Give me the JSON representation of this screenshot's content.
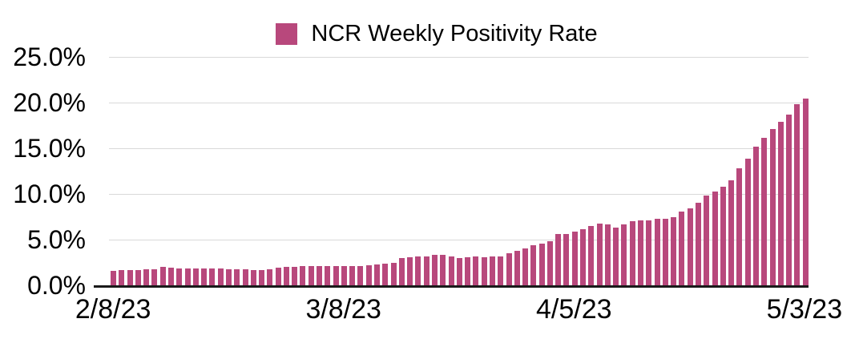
{
  "colors": {
    "bar": "#b8487c",
    "gridline": "#d9d9d9",
    "axis_line": "#1a1a1a",
    "text": "#000000",
    "background": "#ffffff"
  },
  "legend": {
    "label": "NCR Weekly Positivity Rate"
  },
  "chart_data": {
    "type": "bar",
    "title": "NCR Weekly Positivity Rate",
    "xlabel": "",
    "ylabel": "",
    "ylim": [
      0,
      25
    ],
    "grid": true,
    "legend_position": "top-center",
    "ytick_values": [
      25,
      20,
      15,
      10,
      5,
      0
    ],
    "ytick_labels": [
      "25.0%",
      "20.0%",
      "15.0%",
      "10.0%",
      "5.0%",
      "0.0%"
    ],
    "xticks": [
      {
        "index": 0,
        "label": "2/8/23"
      },
      {
        "index": 28,
        "label": "3/8/23"
      },
      {
        "index": 56,
        "label": "4/5/23"
      },
      {
        "index": 84,
        "label": "5/3/23"
      }
    ],
    "unit": "percent",
    "x": [
      "2/8/23",
      "2/9/23",
      "2/10/23",
      "2/11/23",
      "2/12/23",
      "2/13/23",
      "2/14/23",
      "2/15/23",
      "2/16/23",
      "2/17/23",
      "2/18/23",
      "2/19/23",
      "2/20/23",
      "2/21/23",
      "2/22/23",
      "2/23/23",
      "2/24/23",
      "2/25/23",
      "2/26/23",
      "2/27/23",
      "2/28/23",
      "3/1/23",
      "3/2/23",
      "3/3/23",
      "3/4/23",
      "3/5/23",
      "3/6/23",
      "3/7/23",
      "3/8/23",
      "3/9/23",
      "3/10/23",
      "3/11/23",
      "3/12/23",
      "3/13/23",
      "3/14/23",
      "3/15/23",
      "3/16/23",
      "3/17/23",
      "3/18/23",
      "3/19/23",
      "3/20/23",
      "3/21/23",
      "3/22/23",
      "3/23/23",
      "3/24/23",
      "3/25/23",
      "3/26/23",
      "3/27/23",
      "3/28/23",
      "3/29/23",
      "3/30/23",
      "3/31/23",
      "4/1/23",
      "4/2/23",
      "4/3/23",
      "4/4/23",
      "4/5/23",
      "4/6/23",
      "4/7/23",
      "4/8/23",
      "4/9/23",
      "4/10/23",
      "4/11/23",
      "4/12/23",
      "4/13/23",
      "4/14/23",
      "4/15/23",
      "4/16/23",
      "4/17/23",
      "4/18/23",
      "4/19/23",
      "4/20/23",
      "4/21/23",
      "4/22/23",
      "4/23/23",
      "4/24/23",
      "4/25/23",
      "4/26/23",
      "4/27/23",
      "4/28/23",
      "4/29/23",
      "4/30/23",
      "5/1/23",
      "5/2/23",
      "5/3/23"
    ],
    "values": [
      1.6,
      1.7,
      1.7,
      1.7,
      1.75,
      1.75,
      2.0,
      1.9,
      1.85,
      1.85,
      1.8,
      1.8,
      1.8,
      1.8,
      1.75,
      1.75,
      1.75,
      1.7,
      1.7,
      1.75,
      1.9,
      2.0,
      2.05,
      2.1,
      2.1,
      2.1,
      2.15,
      2.15,
      2.1,
      2.1,
      2.15,
      2.2,
      2.3,
      2.4,
      2.5,
      3.0,
      3.1,
      3.15,
      3.2,
      3.3,
      3.35,
      3.2,
      3.0,
      3.1,
      3.15,
      3.1,
      3.15,
      3.2,
      3.5,
      3.75,
      4.05,
      4.4,
      4.6,
      4.85,
      5.65,
      5.6,
      5.85,
      6.15,
      6.5,
      6.75,
      6.7,
      6.3,
      6.7,
      7.0,
      7.1,
      7.1,
      7.25,
      7.3,
      7.5,
      8.1,
      8.4,
      9.0,
      9.8,
      10.3,
      10.75,
      11.5,
      12.8,
      13.9,
      15.2,
      16.1,
      17.1,
      17.9,
      18.7,
      19.8,
      20.4
    ]
  }
}
